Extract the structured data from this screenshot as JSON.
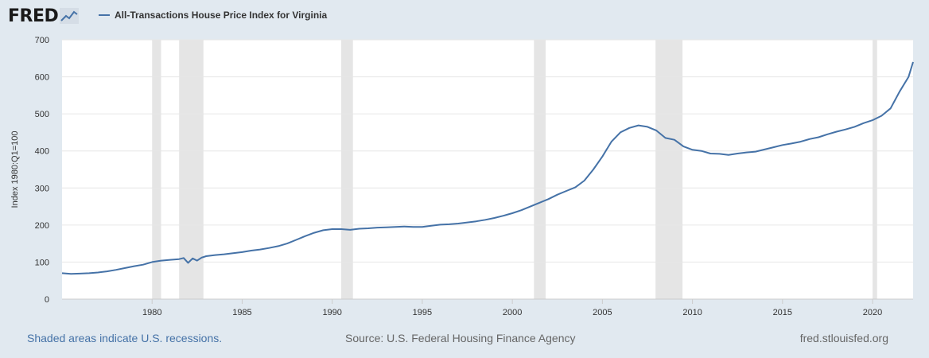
{
  "header": {
    "logo_text": "FRED",
    "legend_label": "All-Transactions House Price Index for Virginia"
  },
  "footer": {
    "recession_note": "Shaded areas indicate U.S. recessions.",
    "source": "Source: U.S. Federal Housing Finance Agency",
    "site": "fred.stlouisfed.org"
  },
  "colors": {
    "series": "#4572a7",
    "recession": "#e5e5e5",
    "grid": "#e6e6e6",
    "background": "#e1e9f0"
  },
  "chart_data": {
    "type": "line",
    "ylabel": "Index 1980:Q1=100",
    "xlim": [
      1975.0,
      2022.25
    ],
    "ylim": [
      0,
      700
    ],
    "yticks": [
      0,
      100,
      200,
      300,
      400,
      500,
      600,
      700
    ],
    "xticks": [
      1980,
      1985,
      1990,
      1995,
      2000,
      2005,
      2010,
      2015,
      2020
    ],
    "grid": "horizontal",
    "recessions": [
      [
        1980.0,
        1980.5
      ],
      [
        1981.5,
        1982.85
      ],
      [
        1990.5,
        1991.15
      ],
      [
        2001.2,
        2001.85
      ],
      [
        2007.95,
        2009.45
      ],
      [
        2020.0,
        2020.25
      ]
    ],
    "series": [
      {
        "name": "All-Transactions House Price Index for Virginia",
        "points": [
          [
            1975.0,
            70
          ],
          [
            1975.5,
            68
          ],
          [
            1976.0,
            69
          ],
          [
            1976.5,
            70
          ],
          [
            1977.0,
            72
          ],
          [
            1977.5,
            75
          ],
          [
            1978.0,
            79
          ],
          [
            1978.5,
            84
          ],
          [
            1979.0,
            89
          ],
          [
            1979.5,
            93
          ],
          [
            1980.0,
            100
          ],
          [
            1980.5,
            104
          ],
          [
            1981.0,
            106
          ],
          [
            1981.5,
            108
          ],
          [
            1981.75,
            111
          ],
          [
            1982.0,
            98
          ],
          [
            1982.25,
            110
          ],
          [
            1982.5,
            104
          ],
          [
            1982.75,
            112
          ],
          [
            1983.0,
            116
          ],
          [
            1983.5,
            119
          ],
          [
            1984.0,
            121
          ],
          [
            1984.5,
            124
          ],
          [
            1985.0,
            127
          ],
          [
            1985.5,
            131
          ],
          [
            1986.0,
            134
          ],
          [
            1986.5,
            138
          ],
          [
            1987.0,
            143
          ],
          [
            1987.5,
            150
          ],
          [
            1988.0,
            160
          ],
          [
            1988.5,
            170
          ],
          [
            1989.0,
            179
          ],
          [
            1989.5,
            186
          ],
          [
            1990.0,
            189
          ],
          [
            1990.5,
            189
          ],
          [
            1991.0,
            187
          ],
          [
            1991.5,
            190
          ],
          [
            1992.0,
            191
          ],
          [
            1992.5,
            193
          ],
          [
            1993.0,
            194
          ],
          [
            1993.5,
            195
          ],
          [
            1994.0,
            196
          ],
          [
            1994.5,
            195
          ],
          [
            1995.0,
            195
          ],
          [
            1995.5,
            198
          ],
          [
            1996.0,
            201
          ],
          [
            1996.5,
            202
          ],
          [
            1997.0,
            204
          ],
          [
            1997.5,
            207
          ],
          [
            1998.0,
            210
          ],
          [
            1998.5,
            214
          ],
          [
            1999.0,
            219
          ],
          [
            1999.5,
            225
          ],
          [
            2000.0,
            232
          ],
          [
            2000.5,
            240
          ],
          [
            2001.0,
            250
          ],
          [
            2001.5,
            260
          ],
          [
            2002.0,
            270
          ],
          [
            2002.5,
            282
          ],
          [
            2003.0,
            292
          ],
          [
            2003.5,
            302
          ],
          [
            2004.0,
            320
          ],
          [
            2004.5,
            350
          ],
          [
            2005.0,
            385
          ],
          [
            2005.5,
            425
          ],
          [
            2006.0,
            450
          ],
          [
            2006.5,
            462
          ],
          [
            2007.0,
            469
          ],
          [
            2007.5,
            465
          ],
          [
            2008.0,
            455
          ],
          [
            2008.5,
            435
          ],
          [
            2009.0,
            430
          ],
          [
            2009.5,
            412
          ],
          [
            2010.0,
            403
          ],
          [
            2010.5,
            400
          ],
          [
            2011.0,
            393
          ],
          [
            2011.5,
            392
          ],
          [
            2012.0,
            389
          ],
          [
            2012.5,
            393
          ],
          [
            2013.0,
            396
          ],
          [
            2013.5,
            398
          ],
          [
            2014.0,
            404
          ],
          [
            2014.5,
            410
          ],
          [
            2015.0,
            416
          ],
          [
            2015.5,
            420
          ],
          [
            2016.0,
            425
          ],
          [
            2016.5,
            432
          ],
          [
            2017.0,
            437
          ],
          [
            2017.5,
            445
          ],
          [
            2018.0,
            452
          ],
          [
            2018.5,
            458
          ],
          [
            2019.0,
            465
          ],
          [
            2019.5,
            475
          ],
          [
            2020.0,
            483
          ],
          [
            2020.5,
            495
          ],
          [
            2021.0,
            515
          ],
          [
            2021.5,
            560
          ],
          [
            2022.0,
            600
          ],
          [
            2022.25,
            640
          ]
        ]
      }
    ]
  }
}
